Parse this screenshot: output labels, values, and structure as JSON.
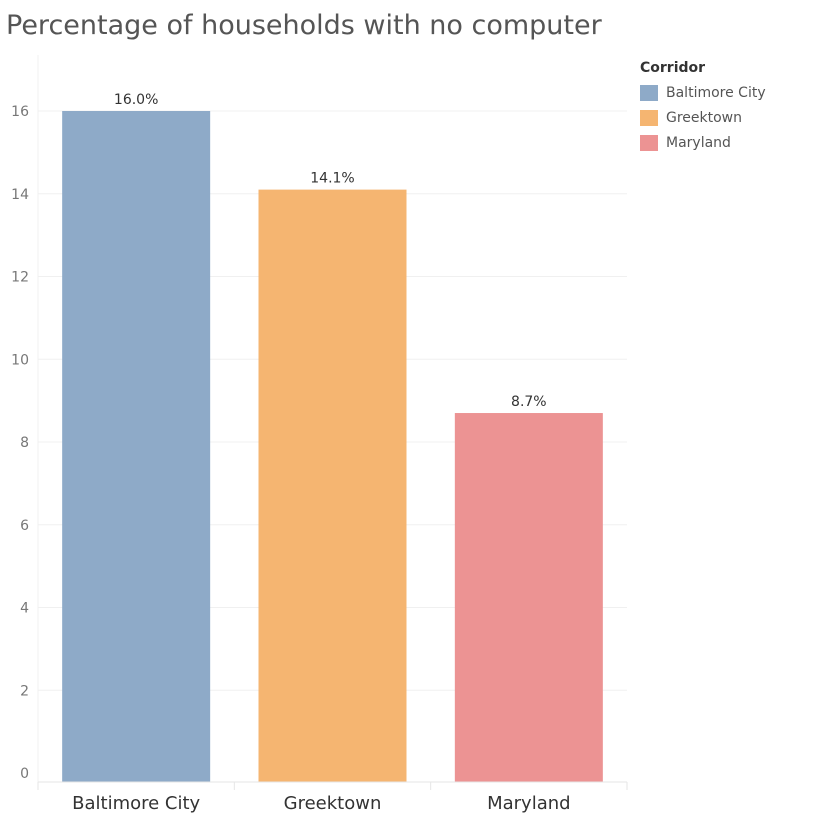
{
  "chart_data": {
    "type": "bar",
    "title": "Percentage of households with no computer",
    "xlabel": "",
    "ylabel": "",
    "categories": [
      "Baltimore City",
      "Greektown",
      "Maryland"
    ],
    "values": [
      16.0,
      14.1,
      8.7
    ],
    "value_labels": [
      "16.0%",
      "14.1%",
      "8.7%"
    ],
    "colors": [
      "#8eaac8",
      "#f5b571",
      "#ec9393"
    ],
    "ylim": [
      0,
      17.2
    ],
    "yticks": [
      0,
      2,
      4,
      6,
      8,
      10,
      12,
      14,
      16
    ],
    "grid": true,
    "legend": {
      "title": "Corridor",
      "placement": "right",
      "entries": [
        "Baltimore City",
        "Greektown",
        "Maryland"
      ]
    }
  }
}
